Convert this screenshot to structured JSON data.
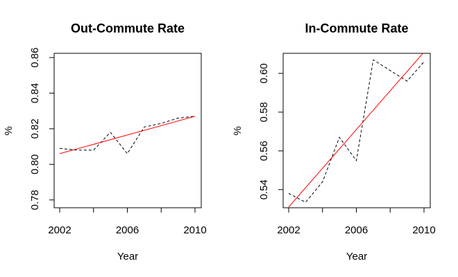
{
  "chart_data": [
    {
      "type": "line",
      "title": "Out-Commute Rate",
      "xlabel": "Year",
      "ylabel": "%",
      "xlim": [
        2002,
        2010
      ],
      "ylim": [
        0.776,
        0.862
      ],
      "xticks": [
        2002,
        2004,
        2006,
        2008,
        2010
      ],
      "xtick_labels": [
        "2002",
        "",
        "2006",
        "",
        "2010"
      ],
      "yticks": [
        0.78,
        0.8,
        0.82,
        0.84,
        0.86
      ],
      "ytick_labels": [
        "0.78",
        "0.80",
        "0.82",
        "0.84",
        "0.86"
      ],
      "grid": false,
      "series": [
        {
          "style": "dashed",
          "color": "#000000",
          "x": [
            2002,
            2003,
            2004,
            2005,
            2006,
            2007,
            2008,
            2009,
            2010
          ],
          "y": [
            0.809,
            0.808,
            0.808,
            0.818,
            0.806,
            0.821,
            0.823,
            0.826,
            0.827
          ]
        },
        {
          "style": "solid",
          "color": "#ff0000",
          "x": [
            2002,
            2010
          ],
          "y": [
            0.806,
            0.827
          ]
        }
      ]
    },
    {
      "type": "line",
      "title": "In-Commute Rate",
      "xlabel": "Year",
      "ylabel": "%",
      "xlim": [
        2002,
        2010
      ],
      "ylim": [
        0.531,
        0.61
      ],
      "xticks": [
        2002,
        2004,
        2006,
        2008,
        2010
      ],
      "xtick_labels": [
        "2002",
        "",
        "2006",
        "",
        "2010"
      ],
      "yticks": [
        0.54,
        0.56,
        0.58,
        0.6
      ],
      "ytick_labels": [
        "0.54",
        "0.56",
        "0.58",
        "0.60"
      ],
      "grid": false,
      "series": [
        {
          "style": "dashed",
          "color": "#000000",
          "x": [
            2002,
            2003,
            2004,
            2005,
            2006,
            2007,
            2008,
            2009,
            2010
          ],
          "y": [
            0.538,
            0.5335,
            0.544,
            0.567,
            0.555,
            0.607,
            0.6015,
            0.596,
            0.606
          ]
        },
        {
          "style": "solid",
          "color": "#ff0000",
          "x": [
            2002,
            2010
          ],
          "y": [
            0.531,
            0.611
          ]
        }
      ]
    }
  ]
}
